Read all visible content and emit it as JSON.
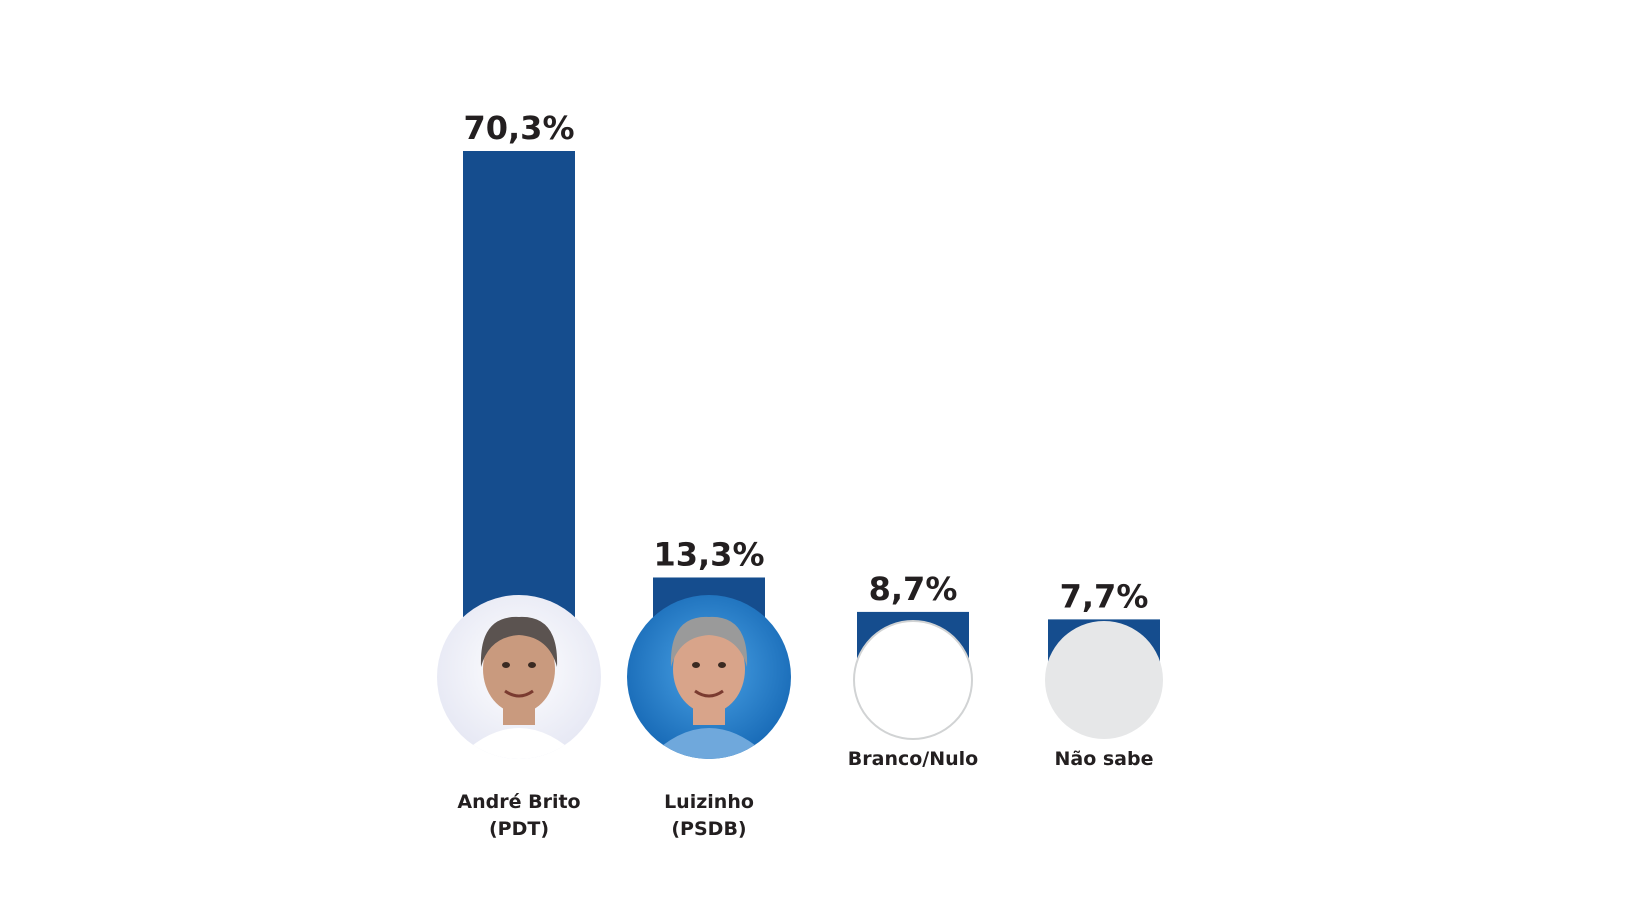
{
  "chart_data": {
    "type": "bar",
    "categories": [
      [
        "André Brito",
        "(PDT)"
      ],
      [
        "Luizinho",
        "(PSDB)"
      ],
      [
        "Branco/Nulo"
      ],
      [
        "Não sabe"
      ]
    ],
    "values": [
      70.3,
      13.3,
      8.7,
      7.7
    ],
    "value_labels": [
      "70,3%",
      "13,3%",
      "8,7%",
      "7,7%"
    ],
    "bar_color": "#154d8e",
    "marker_styles": [
      "photo",
      "photo",
      "white-circle",
      "gray-circle"
    ],
    "ylim": [
      0,
      70.3
    ],
    "grid": false
  }
}
